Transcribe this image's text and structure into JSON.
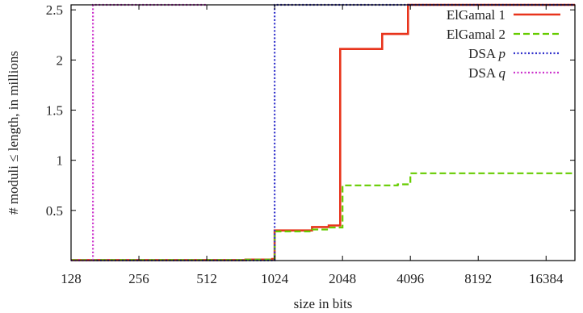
{
  "chart_data": {
    "type": "line",
    "title": "",
    "xlabel": "size in bits",
    "ylabel": "# moduli ≤ length, in millions",
    "x_scale": "log2",
    "xlim": [
      128,
      22000
    ],
    "ylim": [
      0,
      2.55
    ],
    "x_ticks": [
      128,
      256,
      512,
      1024,
      2048,
      4096,
      8192,
      16384
    ],
    "x_tick_labels": [
      "128",
      "256",
      "512",
      "1024",
      "2048",
      "4096",
      "8192",
      "16384"
    ],
    "y_ticks": [
      0.5,
      1,
      1.5,
      2,
      2.5
    ],
    "y_tick_labels": [
      "0.5",
      "1",
      "1.5",
      "2",
      "2.5"
    ],
    "legend_position": "top-right",
    "grid": false,
    "series": [
      {
        "key": "elgamal1",
        "name_prefix": "ElGamal 1",
        "name_var": "",
        "color": "#e8341c",
        "dash": "solid",
        "points": [
          [
            128,
            0.005
          ],
          [
            760,
            0.005
          ],
          [
            760,
            0.01
          ],
          [
            1000,
            0.01
          ],
          [
            1000,
            0.015
          ],
          [
            1024,
            0.015
          ],
          [
            1024,
            0.3
          ],
          [
            1500,
            0.3
          ],
          [
            1500,
            0.335
          ],
          [
            1780,
            0.335
          ],
          [
            1780,
            0.35
          ],
          [
            2000,
            0.35
          ],
          [
            2000,
            2.11
          ],
          [
            3072,
            2.11
          ],
          [
            3072,
            2.26
          ],
          [
            4000,
            2.26
          ],
          [
            4000,
            2.55
          ],
          [
            22000,
            2.55
          ]
        ]
      },
      {
        "key": "elgamal2",
        "name_prefix": "ElGamal 2",
        "name_var": "",
        "color": "#66cc00",
        "dash": "dashed",
        "points": [
          [
            128,
            0.005
          ],
          [
            760,
            0.005
          ],
          [
            760,
            0.01
          ],
          [
            1000,
            0.01
          ],
          [
            1000,
            0.015
          ],
          [
            1024,
            0.015
          ],
          [
            1024,
            0.29
          ],
          [
            1500,
            0.29
          ],
          [
            1500,
            0.31
          ],
          [
            1780,
            0.31
          ],
          [
            1780,
            0.33
          ],
          [
            2048,
            0.33
          ],
          [
            2048,
            0.75
          ],
          [
            3600,
            0.75
          ],
          [
            3600,
            0.76
          ],
          [
            4096,
            0.76
          ],
          [
            4096,
            0.87
          ],
          [
            22000,
            0.87
          ]
        ]
      },
      {
        "key": "dsa_p",
        "name_prefix": "DSA ",
        "name_var": "p",
        "color": "#3333cc",
        "dash": "dotted",
        "points": [
          [
            128,
            0.002
          ],
          [
            1024,
            0.002
          ],
          [
            1024,
            2.55
          ],
          [
            22000,
            2.55
          ]
        ]
      },
      {
        "key": "dsa_q",
        "name_prefix": "DSA ",
        "name_var": "q",
        "color": "#cc33cc",
        "dash": "dotted",
        "points": [
          [
            128,
            0.002
          ],
          [
            160,
            0.002
          ],
          [
            160,
            2.55
          ],
          [
            512,
            2.55
          ]
        ]
      }
    ]
  }
}
